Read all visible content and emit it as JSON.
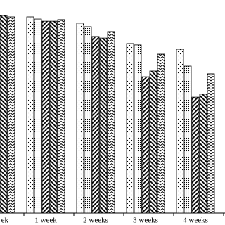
{
  "chart_data": {
    "type": "bar",
    "categories": [
      "ek",
      "1 week",
      "2 weeks",
      "3 weeks",
      "4 weeks"
    ],
    "ylim": [
      0,
      100
    ],
    "series": [
      {
        "pattern": "dots-sparse",
        "color": "#000000",
        "values": [
          null,
          100,
          96.8,
          86.4,
          83.5
        ]
      },
      {
        "pattern": "dots-dense",
        "color": "#000000",
        "values": [
          null,
          98.9,
          95,
          85.7,
          74.9
        ]
      },
      {
        "pattern": "slash",
        "color": "#000000",
        "values": [
          null,
          97.8,
          90,
          69.5,
          59.1
        ]
      },
      {
        "pattern": "backslash",
        "color": "#000000",
        "values": [
          100.7,
          97.8,
          89.2,
          72.4,
          60.6
        ]
      },
      {
        "pattern": "zigzag",
        "color": "#000000",
        "values": [
          100,
          98.6,
          92.5,
          81,
          71
        ]
      }
    ]
  }
}
